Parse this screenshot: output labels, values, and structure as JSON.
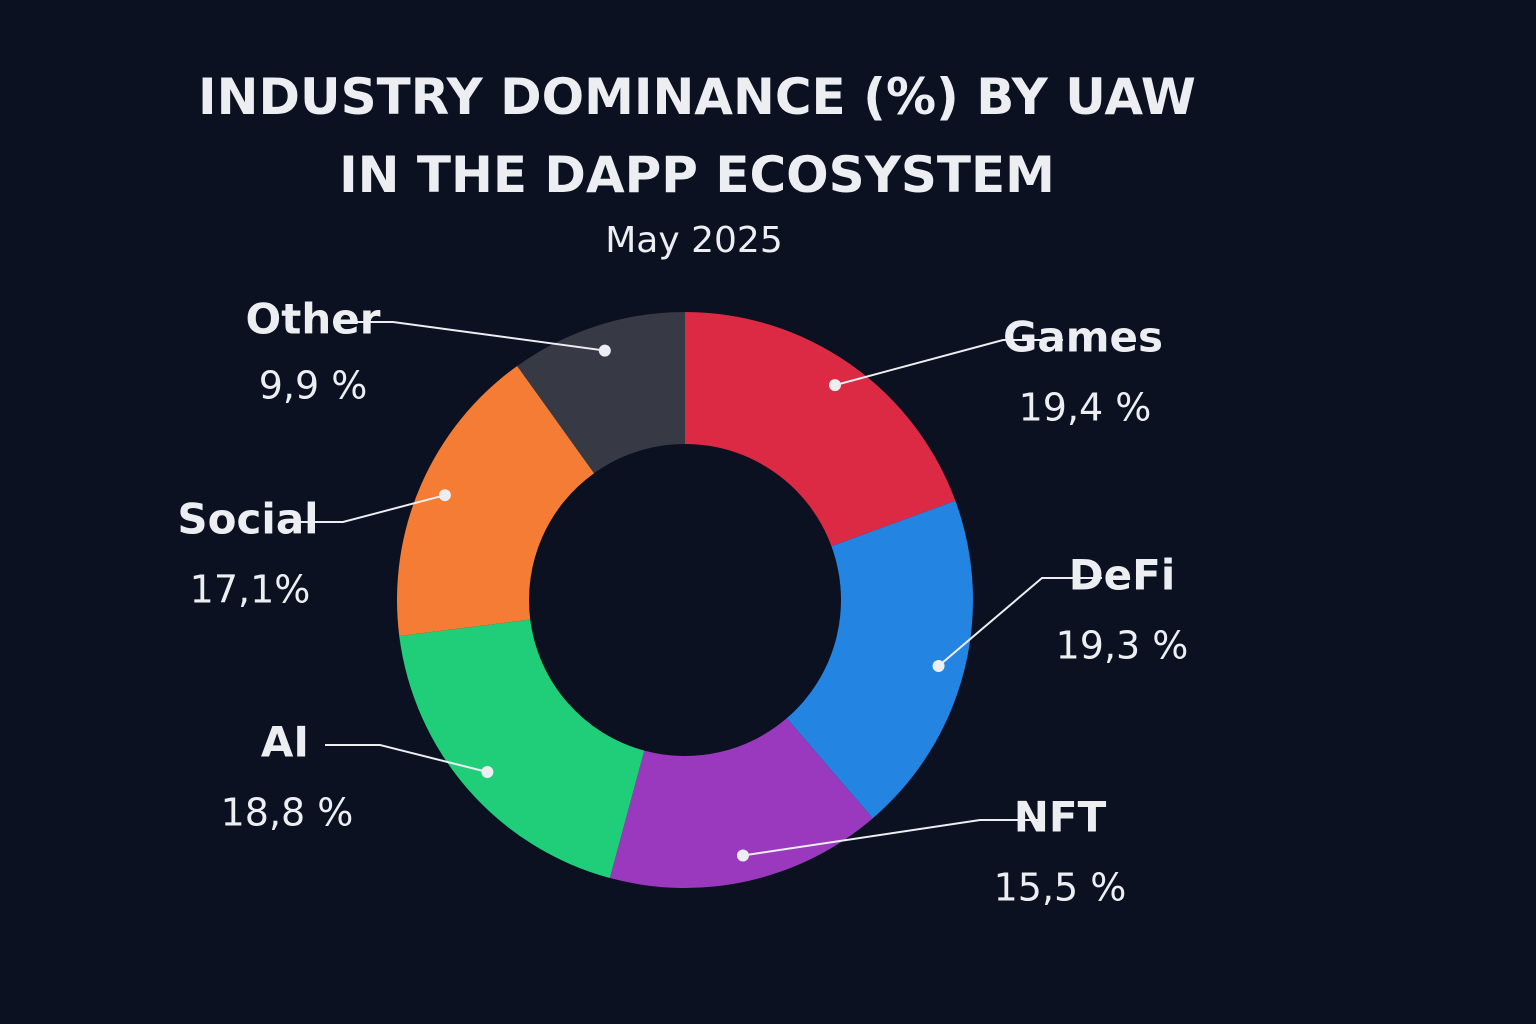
{
  "chart_data": {
    "type": "donut",
    "title": "INDUSTRY DOMINANCE (%) BY UAW IN THE DAPP ECOSYSTEM",
    "subtitle": "May 2025",
    "categories": [
      "Games",
      "DeFi",
      "NFT",
      "AI",
      "Social",
      "Other"
    ],
    "values": [
      19.4,
      19.3,
      15.5,
      18.8,
      17.1,
      9.9
    ],
    "value_labels": [
      "19,4 %",
      "19,3 %",
      "15,5 %",
      "18,8 %",
      "17,1%",
      "9,9 %"
    ],
    "colors": [
      "#dc2a45",
      "#2384e2",
      "#9a39bd",
      "#20cd78",
      "#f47c35",
      "#373a44"
    ]
  }
}
